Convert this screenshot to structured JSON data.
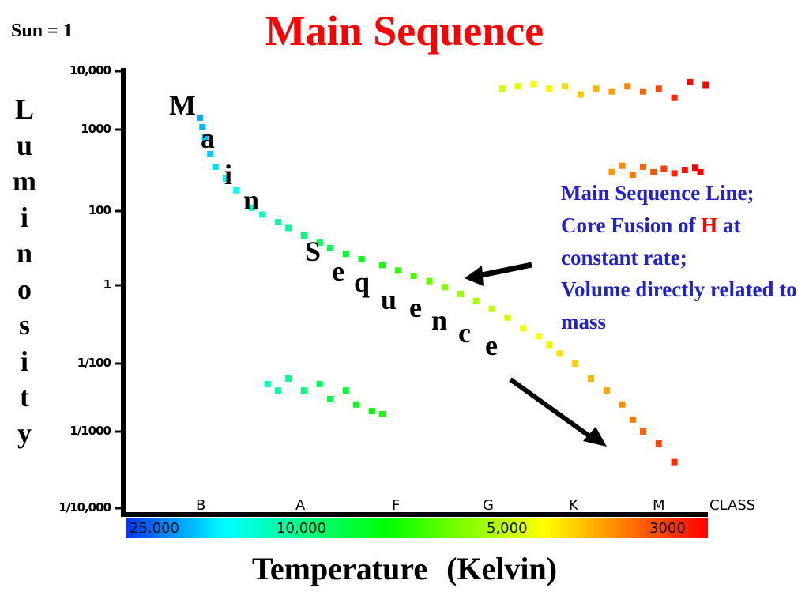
{
  "slide_title": "Main Sequence",
  "unit_note": "Sun = 1",
  "chart_data": {
    "type": "scatter",
    "title": "Main Sequence",
    "ylabel": "Luminosity",
    "xlabel": "Temperature   (Kelvin)",
    "y_scale": "log",
    "y_ticks": [
      "10,000",
      "1000",
      "100",
      "1",
      "1/100",
      "1/1000",
      "1/10,000"
    ],
    "x_classes": [
      "B",
      "A",
      "F",
      "G",
      "K",
      "M"
    ],
    "x_class_label": "CLASS",
    "temperature_labels": [
      "25,000",
      "10,000",
      "5,000",
      "3000"
    ],
    "temperature_bar_colors": [
      "#0033ff",
      "#00ffff",
      "#00ff00",
      "#ffff00",
      "#ff6600",
      "#ff0000"
    ],
    "diagonal_label_letters": [
      "M",
      "a",
      "i",
      "n",
      "S",
      "e",
      "q",
      "u",
      "e",
      "n",
      "c",
      "e"
    ],
    "series": [
      {
        "group": "main_sequence",
        "points": [
          [
            0.05,
            1600
          ],
          [
            0.055,
            1100
          ],
          [
            0.06,
            800
          ],
          [
            0.07,
            500
          ],
          [
            0.08,
            350
          ],
          [
            0.1,
            250
          ],
          [
            0.12,
            180
          ],
          [
            0.15,
            110
          ],
          [
            0.17,
            80
          ],
          [
            0.2,
            50
          ],
          [
            0.22,
            35
          ],
          [
            0.25,
            22
          ],
          [
            0.28,
            14
          ],
          [
            0.3,
            10
          ],
          [
            0.33,
            7
          ],
          [
            0.36,
            5
          ],
          [
            0.4,
            3.5
          ],
          [
            0.43,
            2.5
          ],
          [
            0.46,
            1.8
          ],
          [
            0.49,
            1.3
          ],
          [
            0.52,
            0.9
          ],
          [
            0.55,
            0.6
          ],
          [
            0.58,
            0.4
          ],
          [
            0.61,
            0.25
          ],
          [
            0.64,
            0.15
          ],
          [
            0.67,
            0.08
          ],
          [
            0.7,
            0.05
          ],
          [
            0.72,
            0.03
          ],
          [
            0.74,
            0.018
          ],
          [
            0.77,
            0.01
          ],
          [
            0.8,
            0.006
          ],
          [
            0.83,
            0.004
          ],
          [
            0.86,
            0.0025
          ],
          [
            0.88,
            0.0015
          ],
          [
            0.9,
            0.001
          ],
          [
            0.93,
            0.0007
          ],
          [
            0.96,
            0.0004
          ]
        ]
      },
      {
        "group": "supergiants",
        "points": [
          [
            0.63,
            5000
          ],
          [
            0.66,
            5500
          ],
          [
            0.69,
            6000
          ],
          [
            0.72,
            5000
          ],
          [
            0.75,
            5500
          ],
          [
            0.78,
            4000
          ],
          [
            0.81,
            5000
          ],
          [
            0.84,
            4500
          ],
          [
            0.87,
            5500
          ],
          [
            0.9,
            4500
          ],
          [
            0.93,
            5000
          ],
          [
            0.96,
            3500
          ],
          [
            0.99,
            6500
          ],
          [
            1.02,
            5800
          ]
        ]
      },
      {
        "group": "giants",
        "points": [
          [
            0.84,
            300
          ],
          [
            0.86,
            360
          ],
          [
            0.88,
            280
          ],
          [
            0.9,
            350
          ],
          [
            0.92,
            300
          ],
          [
            0.94,
            330
          ],
          [
            0.96,
            290
          ],
          [
            0.98,
            320
          ],
          [
            1.0,
            340
          ],
          [
            1.01,
            300
          ]
        ]
      },
      {
        "group": "white_dwarfs",
        "points": [
          [
            0.18,
            0.005
          ],
          [
            0.2,
            0.004
          ],
          [
            0.22,
            0.006
          ],
          [
            0.25,
            0.004
          ],
          [
            0.28,
            0.005
          ],
          [
            0.3,
            0.003
          ],
          [
            0.33,
            0.004
          ],
          [
            0.35,
            0.0025
          ],
          [
            0.38,
            0.002
          ],
          [
            0.4,
            0.0018
          ]
        ]
      }
    ]
  },
  "annotation": {
    "line1": "Main Sequence Line;",
    "line2_prefix": "Core Fusion of ",
    "line2_highlight": "H",
    "line2_suffix": " at",
    "line3": "constant rate;",
    "line4": "Volume directly related to mass"
  }
}
